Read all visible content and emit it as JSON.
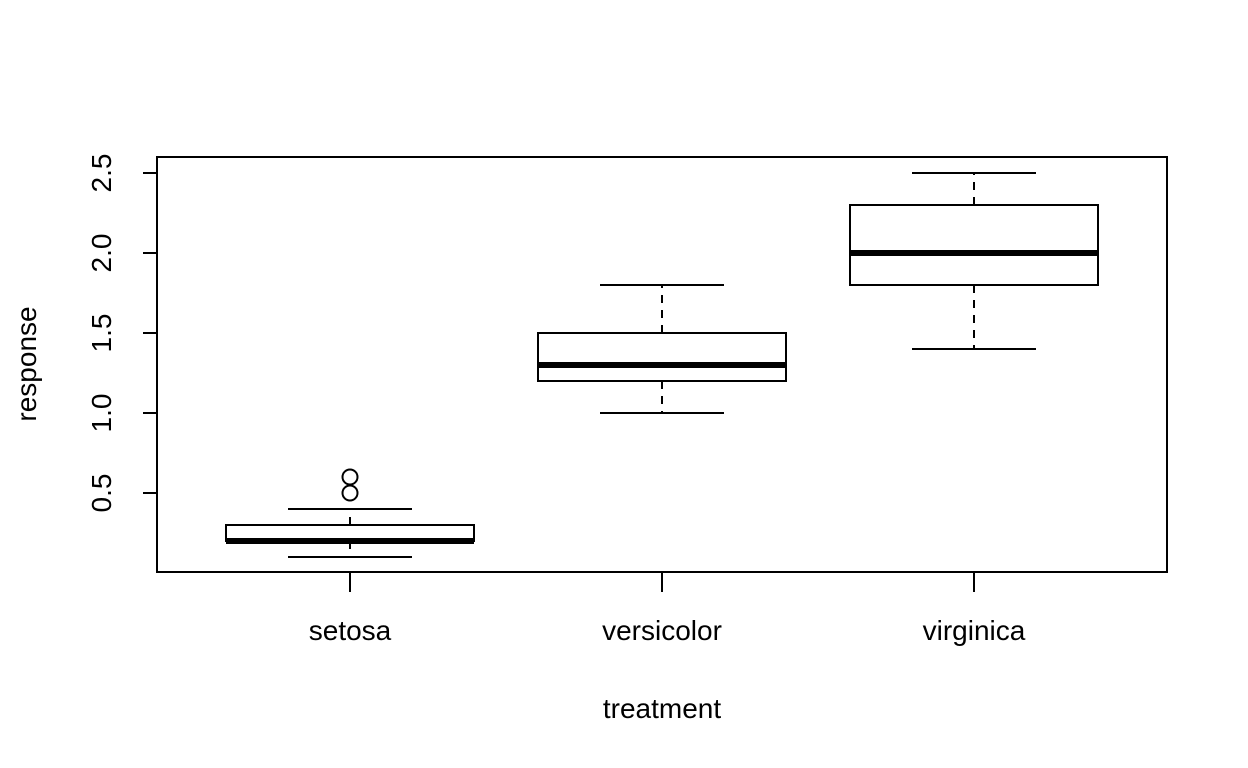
{
  "chart_data": {
    "type": "box",
    "xlabel": "treatment",
    "ylabel": "response",
    "ylim": [
      0.0,
      2.6
    ],
    "yticks": [
      0.5,
      1.0,
      1.5,
      2.0,
      2.5
    ],
    "ytick_labels": [
      "0.5",
      "1.0",
      "1.5",
      "2.0",
      "2.5"
    ],
    "categories": [
      "setosa",
      "versicolor",
      "virginica"
    ],
    "boxes": [
      {
        "category": "setosa",
        "whisker_low": 0.1,
        "q1": 0.2,
        "median": 0.2,
        "q3": 0.3,
        "whisker_high": 0.4,
        "outliers": [
          0.5,
          0.6
        ]
      },
      {
        "category": "versicolor",
        "whisker_low": 1.0,
        "q1": 1.2,
        "median": 1.3,
        "q3": 1.5,
        "whisker_high": 1.8,
        "outliers": []
      },
      {
        "category": "virginica",
        "whisker_low": 1.4,
        "q1": 1.8,
        "median": 2.0,
        "q3": 2.3,
        "whisker_high": 2.5,
        "outliers": []
      }
    ],
    "grid": false,
    "legend": "none"
  }
}
